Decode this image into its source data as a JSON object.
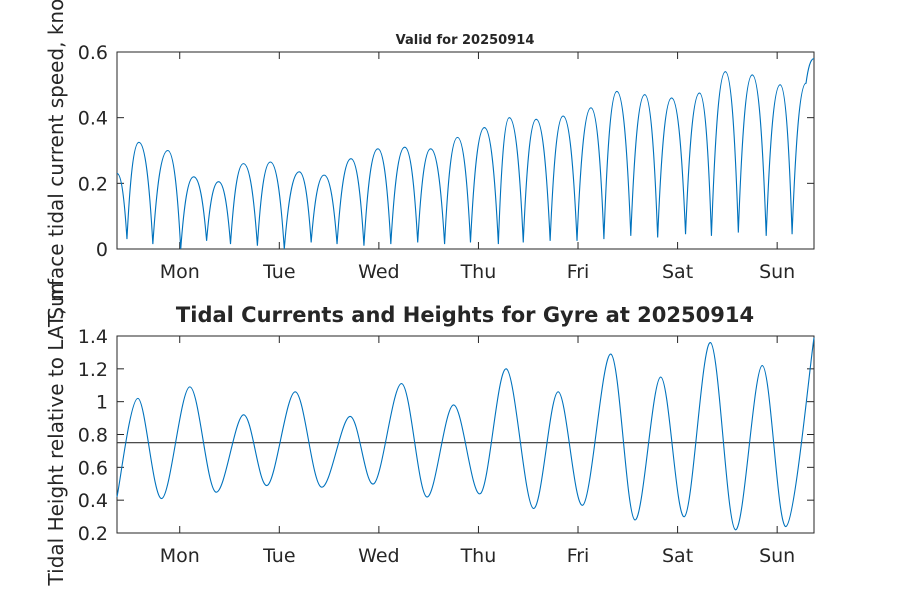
{
  "chart_data": [
    {
      "type": "line",
      "title": "Valid for 20250914",
      "ylabel": "Surface tidal current speed, knots",
      "xlim": [
        0,
        7
      ],
      "ylim": [
        0,
        0.6
      ],
      "yticks": [
        "0",
        "0.2",
        "0.4",
        "0.6"
      ],
      "yticks_values": [
        0,
        0.2,
        0.4,
        0.6
      ],
      "categories": [
        "Mon",
        "Tue",
        "Wed",
        "Thu",
        "Fri",
        "Sat",
        "Sun"
      ],
      "category_positions": [
        0.63,
        1.63,
        2.63,
        3.63,
        4.63,
        5.63,
        6.63
      ],
      "series": [
        {
          "color": "#0072BD",
          "x": [
            0,
            0.1,
            0.22,
            0.36,
            0.51,
            0.64,
            0.77,
            0.9,
            1.02,
            1.14,
            1.27,
            1.41,
            1.54,
            1.68,
            1.83,
            1.95,
            2.08,
            2.21,
            2.35,
            2.48,
            2.62,
            2.75,
            2.89,
            3.02,
            3.15,
            3.29,
            3.42,
            3.55,
            3.69,
            3.83,
            3.94,
            4.08,
            4.21,
            4.35,
            4.48,
            4.62,
            4.76,
            4.89,
            5.02,
            5.16,
            5.3,
            5.43,
            5.57,
            5.71,
            5.85,
            5.97,
            6.11,
            6.24,
            6.38,
            6.52,
            6.66,
            6.78,
            6.92,
            7.0
          ],
          "y": [
            0.23,
            0.03,
            0.325,
            0.015,
            0.3,
            0.0,
            0.22,
            0.025,
            0.205,
            0.015,
            0.26,
            0.01,
            0.265,
            0.0,
            0.235,
            0.02,
            0.225,
            0.015,
            0.275,
            0.01,
            0.305,
            0.015,
            0.31,
            0.02,
            0.305,
            0.015,
            0.34,
            0.02,
            0.37,
            0.015,
            0.4,
            0.02,
            0.395,
            0.025,
            0.405,
            0.025,
            0.43,
            0.03,
            0.48,
            0.04,
            0.47,
            0.035,
            0.46,
            0.045,
            0.475,
            0.04,
            0.54,
            0.05,
            0.53,
            0.04,
            0.5,
            0.045,
            0.505,
            0.58
          ]
        }
      ]
    },
    {
      "type": "line",
      "title": "Tidal Currents and Heights for Gyre at 20250914",
      "ylabel": "Tidal Height relative to LAT, m",
      "xlim": [
        0,
        7
      ],
      "ylim": [
        0.2,
        1.4
      ],
      "yticks": [
        "0.2",
        "0.4",
        "0.6",
        "0.8",
        "1",
        "1.2",
        "1.4"
      ],
      "yticks_values": [
        0.2,
        0.4,
        0.6,
        0.8,
        1.0,
        1.2,
        1.4
      ],
      "categories": [
        "Mon",
        "Tue",
        "Wed",
        "Thu",
        "Fri",
        "Sat",
        "Sun"
      ],
      "category_positions": [
        0.63,
        1.63,
        2.63,
        3.63,
        4.63,
        5.63,
        6.63
      ],
      "reference_line": 0.75,
      "series": [
        {
          "color": "#0072BD",
          "x": [
            0,
            0.21,
            0.45,
            0.73,
            0.99,
            1.27,
            1.51,
            1.79,
            2.05,
            2.34,
            2.58,
            2.86,
            3.11,
            3.38,
            3.65,
            3.91,
            4.18,
            4.43,
            4.68,
            4.96,
            5.2,
            5.46,
            5.7,
            5.96,
            6.21,
            6.48,
            6.72,
            7.0
          ],
          "y": [
            0.42,
            1.02,
            0.41,
            1.09,
            0.45,
            0.92,
            0.49,
            1.06,
            0.48,
            0.91,
            0.5,
            1.11,
            0.42,
            0.98,
            0.44,
            1.2,
            0.35,
            1.06,
            0.37,
            1.29,
            0.28,
            1.15,
            0.3,
            1.36,
            0.22,
            1.22,
            0.24,
            1.39
          ]
        }
      ]
    }
  ]
}
